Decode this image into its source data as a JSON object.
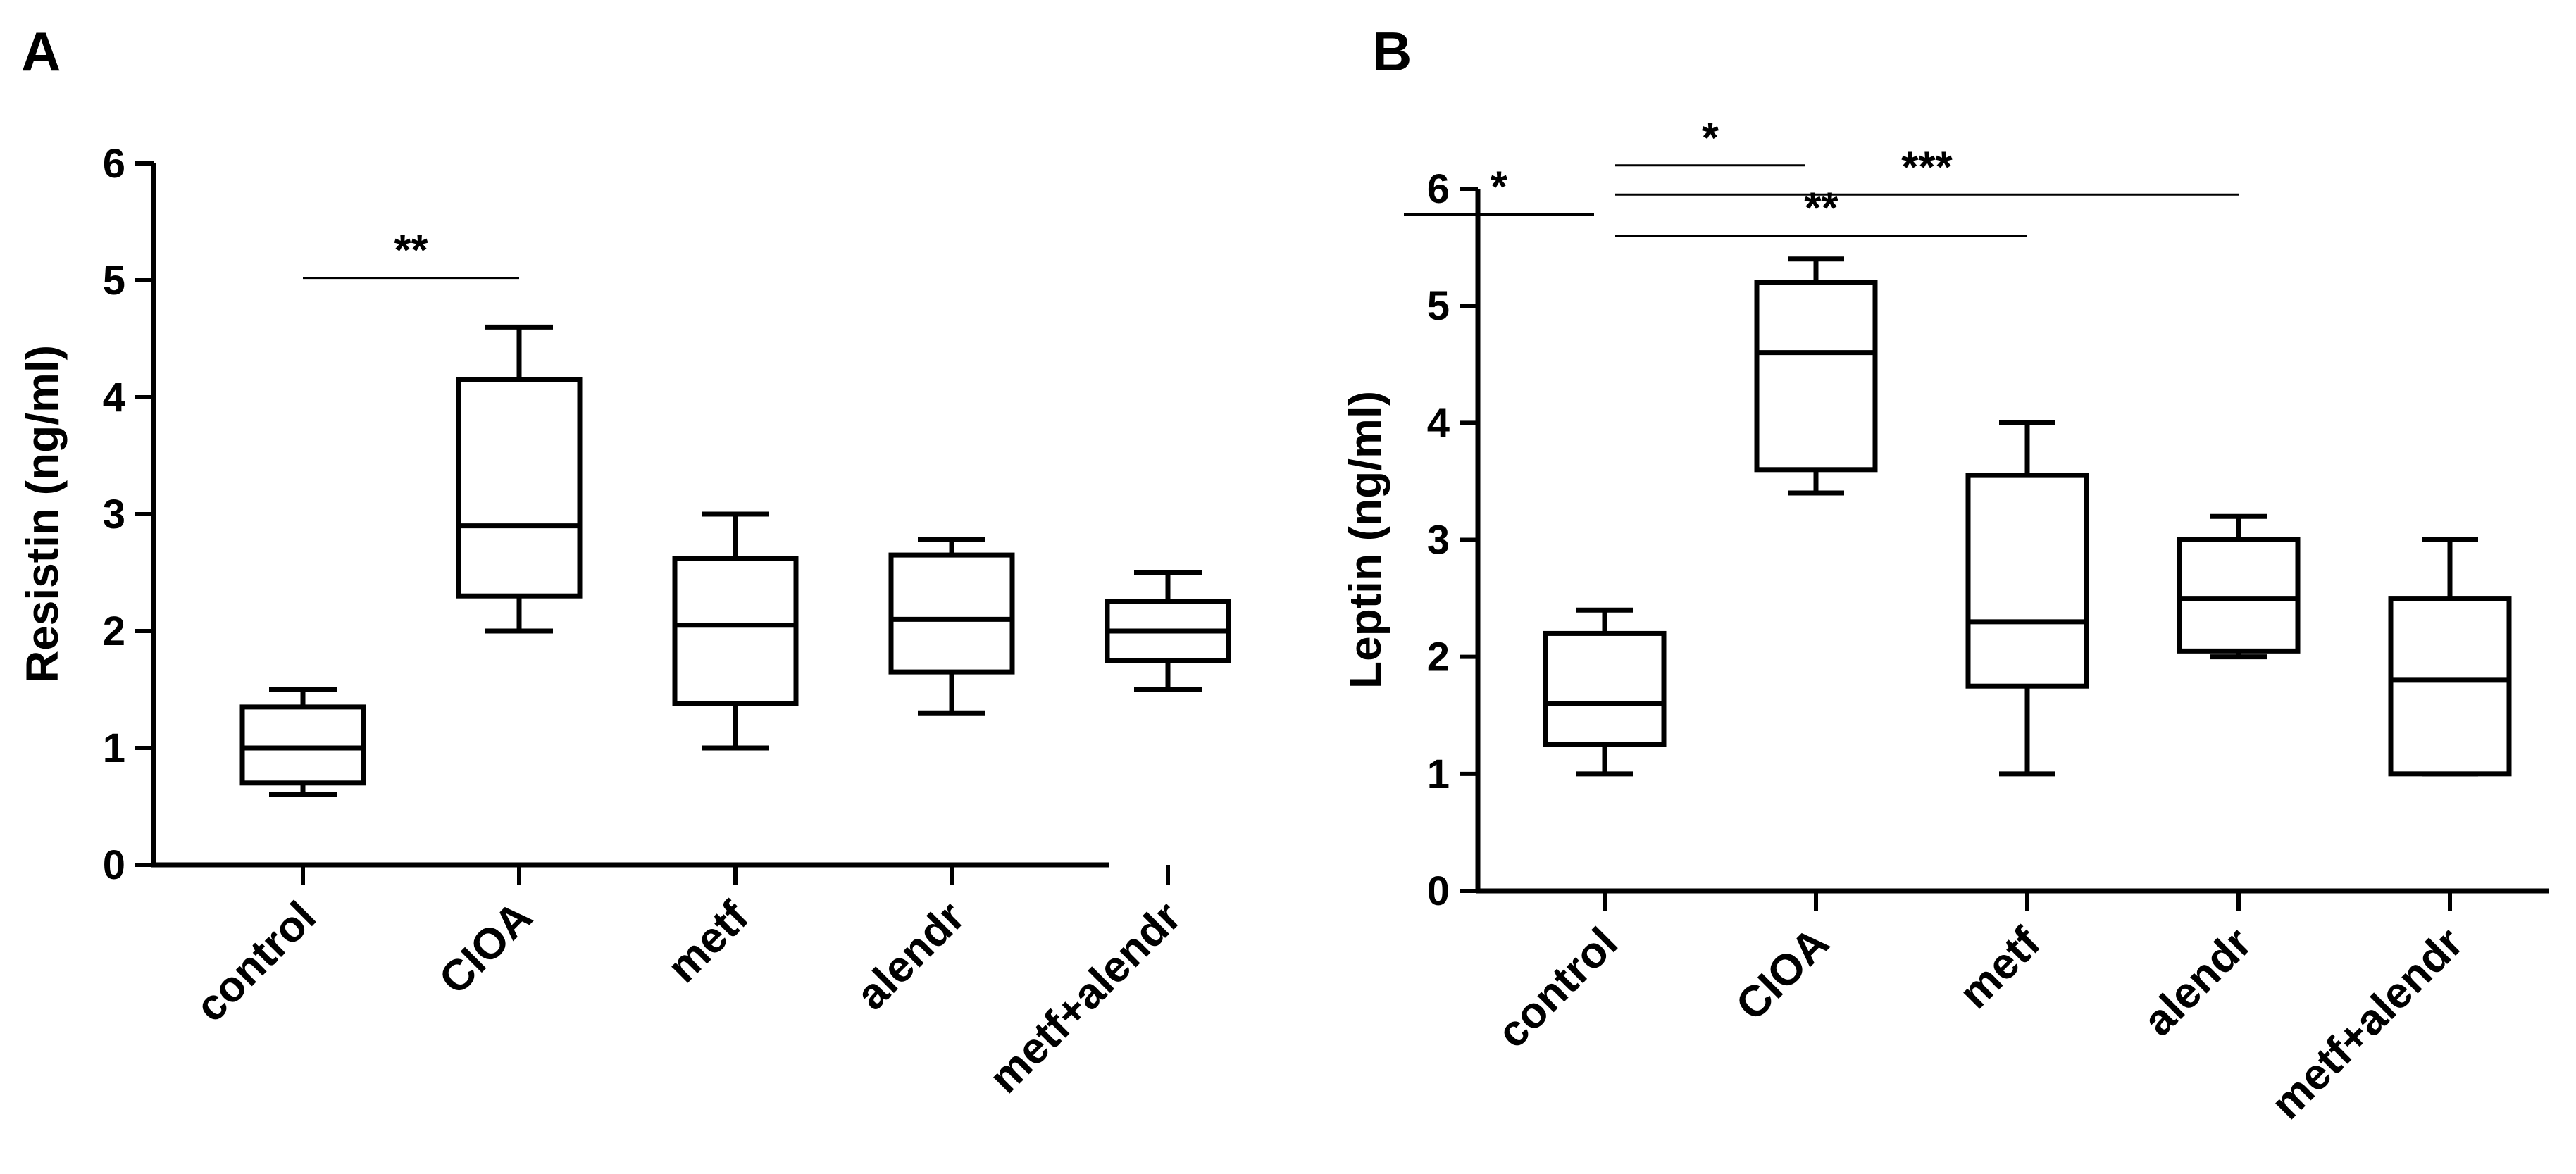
{
  "chart_data": [
    {
      "type": "box",
      "panel_label": "A",
      "ylabel": "Resistin (ng/ml)",
      "xlabel": "",
      "ylim": [
        0,
        6
      ],
      "yticks": [
        0,
        1,
        2,
        3,
        4,
        5,
        6
      ],
      "grid": false,
      "categories": [
        "control",
        "CIOA",
        "metf",
        "alendr",
        "metf+alendr"
      ],
      "boxes": [
        {
          "min": 0.6,
          "q1": 0.7,
          "median": 1.0,
          "q3": 1.35,
          "max": 1.5
        },
        {
          "min": 2.0,
          "q1": 2.3,
          "median": 2.9,
          "q3": 4.15,
          "max": 4.6
        },
        {
          "min": 1.0,
          "q1": 1.38,
          "median": 2.05,
          "q3": 2.62,
          "max": 3.0
        },
        {
          "min": 1.3,
          "q1": 1.65,
          "median": 2.1,
          "q3": 2.65,
          "max": 2.78
        },
        {
          "min": 1.5,
          "q1": 1.75,
          "median": 2.0,
          "q3": 2.25,
          "max": 2.5
        }
      ],
      "significance": [
        {
          "from": 0,
          "to": 1,
          "y": 5.02,
          "label": "**"
        }
      ]
    },
    {
      "type": "box",
      "panel_label": "B",
      "ylabel": "Leptin (ng/ml)",
      "xlabel": "",
      "ylim": [
        0,
        6
      ],
      "yticks": [
        0,
        1,
        2,
        3,
        4,
        5,
        6
      ],
      "grid": false,
      "categories": [
        "control",
        "CIOA",
        "metf",
        "alendr",
        "metf+alendr"
      ],
      "boxes": [
        {
          "min": 1.0,
          "q1": 1.25,
          "median": 1.6,
          "q3": 2.2,
          "max": 2.4
        },
        {
          "min": 3.4,
          "q1": 3.6,
          "median": 4.6,
          "q3": 5.2,
          "max": 5.4
        },
        {
          "min": 1.0,
          "q1": 1.75,
          "median": 2.3,
          "q3": 3.55,
          "max": 4.0
        },
        {
          "min": 2.0,
          "q1": 2.05,
          "median": 2.5,
          "q3": 3.0,
          "max": 3.2
        },
        {
          "min": 1.0,
          "q1": 1.0,
          "median": 1.8,
          "q3": 2.5,
          "max": 3.0
        }
      ],
      "significance": [
        {
          "from": -0.95,
          "to": -0.05,
          "y": 5.78,
          "label": "*"
        },
        {
          "from": 0.05,
          "to": 0.95,
          "y": 6.2,
          "label": "*"
        },
        {
          "from": 0.05,
          "to": 3.0,
          "y": 5.95,
          "label": "***"
        },
        {
          "from": 0.05,
          "to": 2.0,
          "y": 5.6,
          "label": "**"
        }
      ]
    }
  ]
}
